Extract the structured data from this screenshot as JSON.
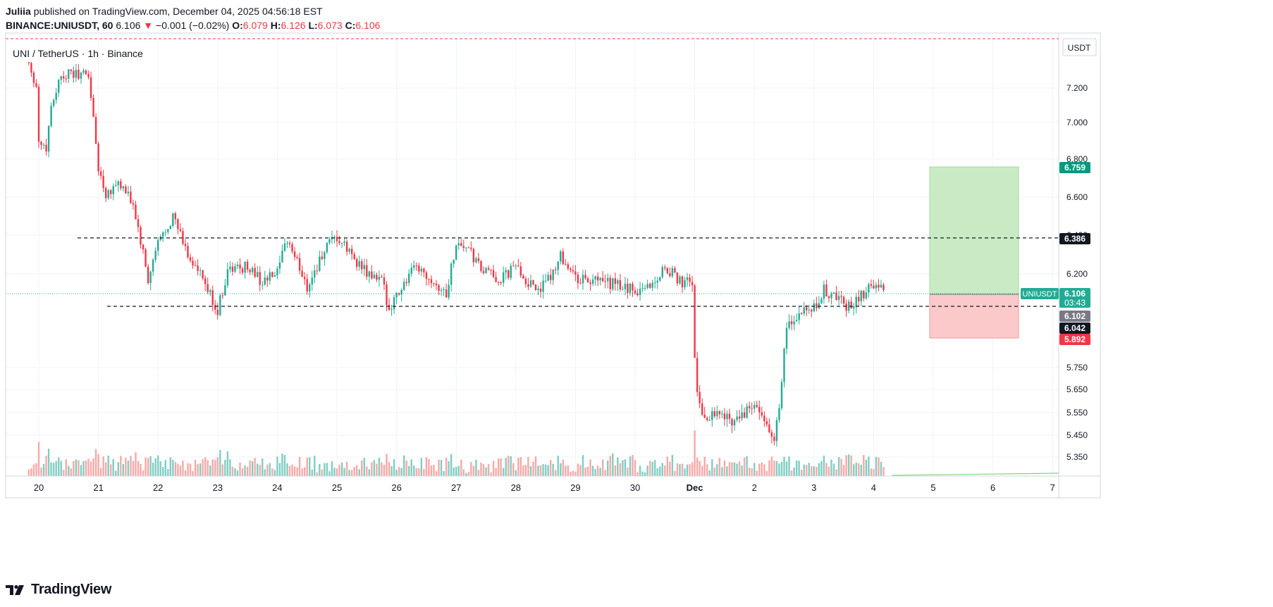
{
  "header": {
    "author": "Juliia",
    "published": "published on TradingView.com, December 04, 2025 04:56:18 EST",
    "symbol": "BINANCE:UNIUSDT, 60",
    "last": "6.106",
    "arrow": "▼",
    "change": "−0.001 (−0.02%)",
    "o_label": "O:",
    "o_value": "6.079",
    "h_label": "H:",
    "h_value": "6.126",
    "l_label": "L:",
    "l_value": "6.073",
    "c_label": "C:",
    "c_value": "6.106"
  },
  "legend": "UNI / TetherUS · 1h · Binance",
  "logo_text": "TradingView",
  "colors": {
    "up": "#22ab94",
    "down": "#f23645",
    "vol_up": "#7fcec3",
    "vol_down": "#f7a9a7",
    "profit_zone": "#c8ebc4",
    "loss_zone": "#fbc9c9",
    "target_label": "#089981",
    "stop_label": "#f23645",
    "grid": "#f0f3fa"
  },
  "chart_data": {
    "type": "candlestick",
    "title": "UNI / TetherUS · 1h · Binance",
    "currency_label": "USDT",
    "x_tick_labels": [
      "20",
      "21",
      "22",
      "23",
      "24",
      "25",
      "26",
      "27",
      "28",
      "29",
      "30",
      "Dec",
      "2",
      "3",
      "4",
      "5",
      "6",
      "7"
    ],
    "y_tick_labels": [
      "7.200",
      "7.000",
      "6.800",
      "6.600",
      "6.400",
      "6.200",
      "5.750",
      "5.650",
      "5.550",
      "5.450",
      "5.350"
    ],
    "key_points": [
      {
        "t": "Nov 19 20:00",
        "price": 7.35
      },
      {
        "t": "Nov 19 23:00",
        "price": 7.21
      },
      {
        "t": "Nov 20 00:00",
        "price": 6.9
      },
      {
        "t": "Nov 20 03:00",
        "price": 6.86
      },
      {
        "t": "Nov 20 05:00",
        "price": 7.1
      },
      {
        "t": "Nov 20 09:00",
        "price": 7.28
      },
      {
        "t": "Nov 20 20:00",
        "price": 7.28
      },
      {
        "t": "Nov 21 00:00",
        "price": 6.75
      },
      {
        "t": "Nov 21 03:00",
        "price": 6.62
      },
      {
        "t": "Nov 21 08:00",
        "price": 6.68
      },
      {
        "t": "Nov 21 14:00",
        "price": 6.56
      },
      {
        "t": "Nov 21 18:00",
        "price": 6.3
      },
      {
        "t": "Nov 21 20:00",
        "price": 6.16
      },
      {
        "t": "Nov 22 00:00",
        "price": 6.36
      },
      {
        "t": "Nov 22 06:00",
        "price": 6.5
      },
      {
        "t": "Nov 22 12:00",
        "price": 6.3
      },
      {
        "t": "Nov 22 18:00",
        "price": 6.17
      },
      {
        "t": "Nov 23 00:00",
        "price": 6.02
      },
      {
        "t": "Nov 23 04:00",
        "price": 6.22
      },
      {
        "t": "Nov 23 12:00",
        "price": 6.24
      },
      {
        "t": "Nov 23 18:00",
        "price": 6.16
      },
      {
        "t": "Nov 24 00:00",
        "price": 6.2
      },
      {
        "t": "Nov 24 04:00",
        "price": 6.38
      },
      {
        "t": "Nov 24 12:00",
        "price": 6.14
      },
      {
        "t": "Nov 24 20:00",
        "price": 6.34
      },
      {
        "t": "Nov 25 00:00",
        "price": 6.38
      },
      {
        "t": "Nov 25 06:00",
        "price": 6.3
      },
      {
        "t": "Nov 25 12:00",
        "price": 6.2
      },
      {
        "t": "Nov 25 18:00",
        "price": 6.16
      },
      {
        "t": "Nov 25 21:00",
        "price": 6.04
      },
      {
        "t": "Nov 26 00:00",
        "price": 6.1
      },
      {
        "t": "Nov 26 08:00",
        "price": 6.24
      },
      {
        "t": "Nov 26 14:00",
        "price": 6.18
      },
      {
        "t": "Nov 26 20:00",
        "price": 6.1
      },
      {
        "t": "Nov 27 00:00",
        "price": 6.36
      },
      {
        "t": "Nov 27 04:00",
        "price": 6.34
      },
      {
        "t": "Nov 27 10:00",
        "price": 6.22
      },
      {
        "t": "Nov 27 18:00",
        "price": 6.17
      },
      {
        "t": "Nov 28 00:00",
        "price": 6.24
      },
      {
        "t": "Nov 28 06:00",
        "price": 6.14
      },
      {
        "t": "Nov 28 12:00",
        "price": 6.14
      },
      {
        "t": "Nov 28 18:00",
        "price": 6.3
      },
      {
        "t": "Nov 29 00:00",
        "price": 6.18
      },
      {
        "t": "Nov 29 08:00",
        "price": 6.16
      },
      {
        "t": "Nov 29 16:00",
        "price": 6.15
      },
      {
        "t": "Nov 30 00:00",
        "price": 6.12
      },
      {
        "t": "Nov 30 08:00",
        "price": 6.16
      },
      {
        "t": "Nov 30 12:00",
        "price": 6.24
      },
      {
        "t": "Nov 30 18:00",
        "price": 6.16
      },
      {
        "t": "Nov 30 23:00",
        "price": 6.16
      },
      {
        "t": "Dec 01 00:00",
        "price": 5.8
      },
      {
        "t": "Dec 01 01:00",
        "price": 5.62
      },
      {
        "t": "Dec 01 04:00",
        "price": 5.52
      },
      {
        "t": "Dec 01 08:00",
        "price": 5.56
      },
      {
        "t": "Dec 01 14:00",
        "price": 5.52
      },
      {
        "t": "Dec 01 20:00",
        "price": 5.54
      },
      {
        "t": "Dec 02 00:00",
        "price": 5.58
      },
      {
        "t": "Dec 02 04:00",
        "price": 5.5
      },
      {
        "t": "Dec 02 08:00",
        "price": 5.45
      },
      {
        "t": "Dec 02 10:00",
        "price": 5.55
      },
      {
        "t": "Dec 02 13:00",
        "price": 5.95
      },
      {
        "t": "Dec 02 18:00",
        "price": 6.0
      },
      {
        "t": "Dec 03 00:00",
        "price": 6.03
      },
      {
        "t": "Dec 03 04:00",
        "price": 6.12
      },
      {
        "t": "Dec 03 10:00",
        "price": 6.08
      },
      {
        "t": "Dec 03 14:00",
        "price": 6.04
      },
      {
        "t": "Dec 03 18:00",
        "price": 6.08
      },
      {
        "t": "Dec 04 00:00",
        "price": 6.16
      },
      {
        "t": "Dec 04 04:00",
        "price": 6.106
      }
    ],
    "levels": [
      {
        "name": "resistance",
        "value": 6.386,
        "label": "6.386",
        "style": "dashed"
      },
      {
        "name": "support",
        "value": 6.102,
        "label": "6.102",
        "style": "dashed"
      }
    ],
    "position": {
      "type": "long",
      "entry": 6.102,
      "target": 6.759,
      "stop": 5.892,
      "target_label": "6.759",
      "stop_label": "5.892",
      "entry_label": "6.102"
    },
    "price_labels": {
      "symbol": "UNIUSDT",
      "last": "6.106",
      "countdown": "03:43",
      "entry": "6.102",
      "level2": "6.042",
      "target": "6.759",
      "stop": "5.892",
      "resistance": "6.386"
    }
  }
}
